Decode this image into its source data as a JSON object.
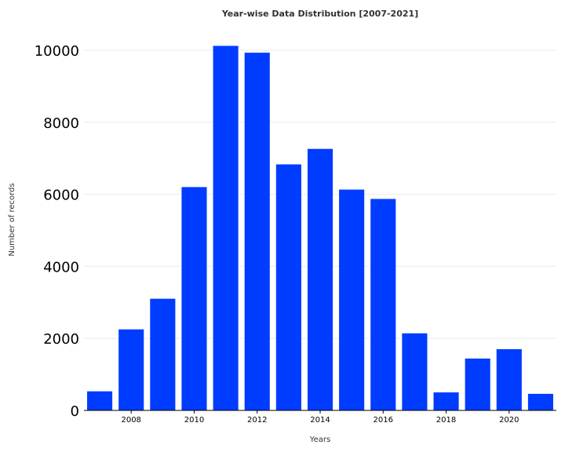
{
  "chart_data": {
    "type": "bar",
    "title": "Year-wise Data Distribution [2007-2021]",
    "xlabel": "Years",
    "ylabel": "Number of records",
    "categories": [
      2007,
      2008,
      2009,
      2010,
      2011,
      2012,
      2013,
      2014,
      2015,
      2016,
      2017,
      2018,
      2019,
      2020,
      2021
    ],
    "values": [
      530,
      2250,
      3100,
      6200,
      10120,
      9930,
      6830,
      7260,
      6130,
      5870,
      2140,
      500,
      1440,
      1700,
      460
    ],
    "ylim": [
      0,
      10500
    ],
    "yticks": [
      "0",
      "2000",
      "4000",
      "6000",
      "8000",
      "10000"
    ],
    "xticks": [
      "2008",
      "2010",
      "2012",
      "2014",
      "2016",
      "2018",
      "2020"
    ],
    "bar_color": "#003cff",
    "grid": true
  }
}
